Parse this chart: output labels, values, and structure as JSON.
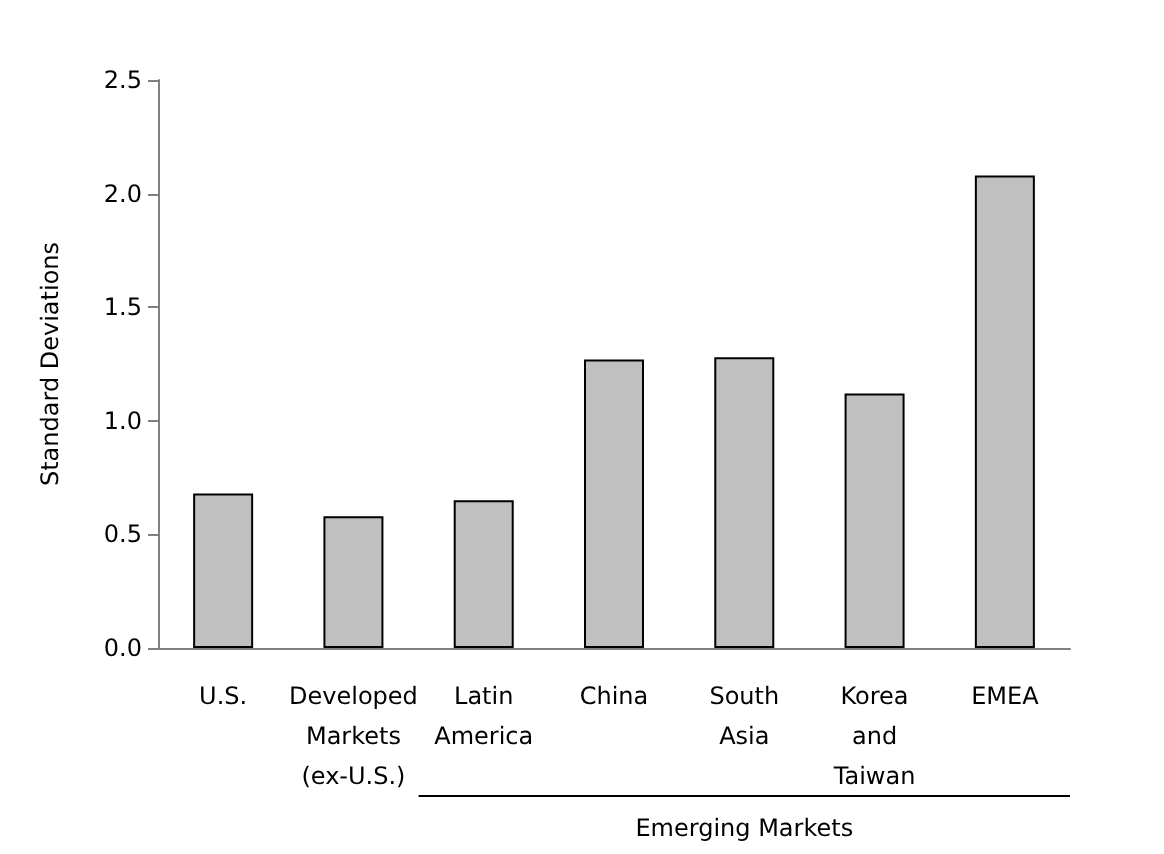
{
  "chart_data": {
    "type": "bar",
    "ylabel": "Standard Deviations",
    "categories": [
      "U.S.",
      "Developed\nMarkets\n(ex-U.S.)",
      "Latin\nAmerica",
      "China",
      "South\nAsia",
      "Korea\nand\nTaiwan",
      "EMEA"
    ],
    "values": [
      0.68,
      0.58,
      0.65,
      1.27,
      1.28,
      1.12,
      2.08
    ],
    "color": "#c0c0c0",
    "ylim": [
      0,
      2.5
    ],
    "yticks": [
      {
        "value": 0,
        "label": "0.0"
      },
      0.5,
      {
        "value": 1,
        "label": "1.0"
      },
      1.5,
      {
        "value": 2,
        "label": "2.0"
      },
      2.5
    ],
    "grid": false,
    "annotations": [
      "Emerging Markets"
    ]
  }
}
